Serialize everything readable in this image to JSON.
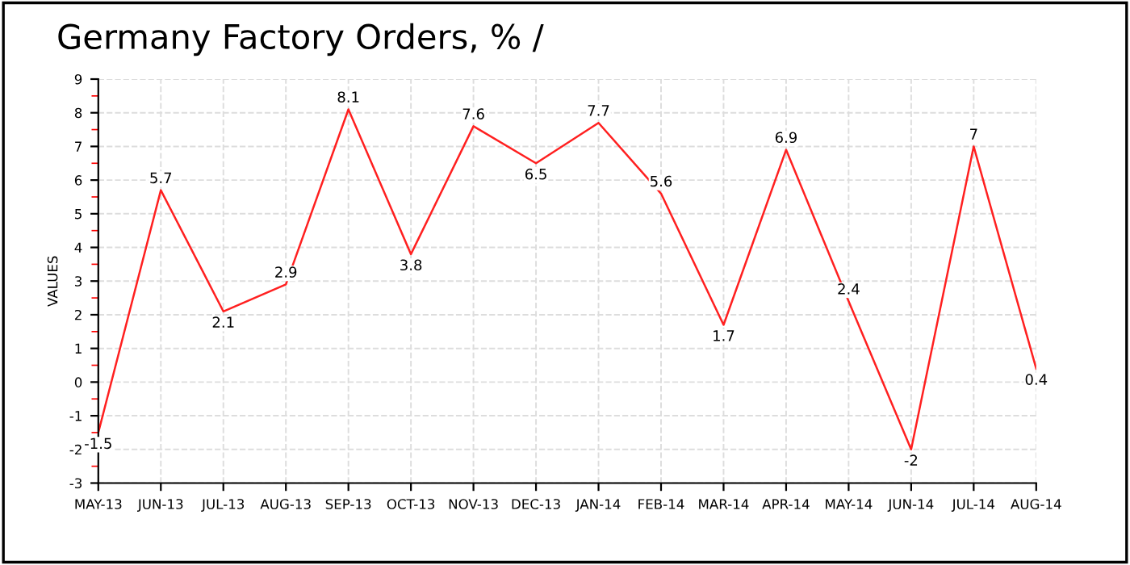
{
  "chart_data": {
    "type": "line",
    "title": "Germany Factory Orders, % /",
    "ylabel": "VALUES",
    "categories": [
      "MAY-13",
      "JUN-13",
      "JUL-13",
      "AUG-13",
      "SEP-13",
      "OCT-13",
      "NOV-13",
      "DEC-13",
      "JAN-14",
      "FEB-14",
      "MAR-14",
      "APR-14",
      "MAY-14",
      "JUN-14",
      "JUL-14",
      "AUG-14"
    ],
    "series": [
      {
        "color": "#ff2020",
        "values": [
          -1.5,
          5.7,
          2.1,
          2.9,
          8.1,
          3.8,
          7.6,
          6.5,
          7.7,
          5.6,
          1.7,
          6.9,
          2.4,
          -2,
          7,
          0.4
        ]
      }
    ],
    "ylim": [
      -3,
      9
    ],
    "yticks": [
      -3,
      -2,
      -1,
      0,
      1,
      2,
      3,
      4,
      5,
      6,
      7,
      8,
      9
    ],
    "grid": true,
    "data_labels": true,
    "marker": "none",
    "line_style": "solid"
  }
}
